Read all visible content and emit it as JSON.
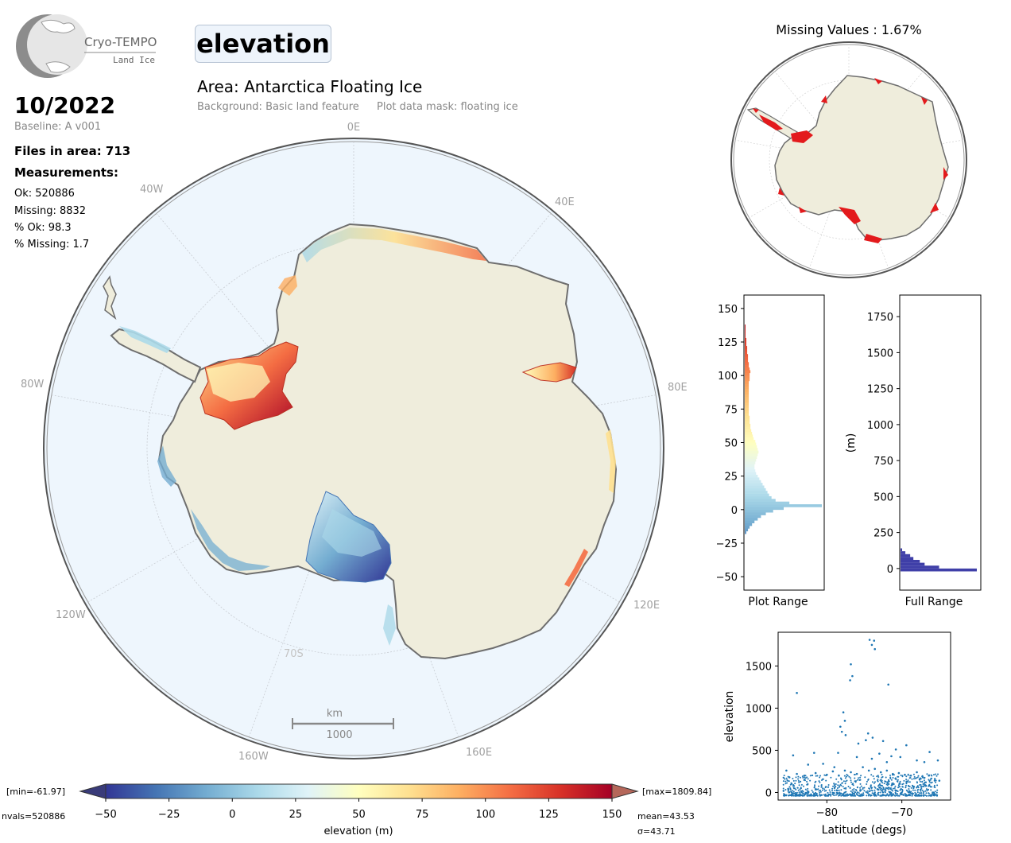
{
  "header": {
    "logo_title": "Cryo-TEMPO",
    "logo_subtitle": "Land Ice",
    "variable": "elevation",
    "area_title": "Area: Antarctica Floating Ice",
    "background_note": "Background: Basic land feature",
    "mask_note": "Plot data mask: floating ice"
  },
  "info": {
    "date": "10/2022",
    "baseline": "Baseline: A v001",
    "files": "Files in area: 713",
    "measurements_heading": "Measurements:",
    "ok": "Ok: 520886",
    "missing": "Missing: 8832",
    "pct_ok": "% Ok: 98.3",
    "pct_missing": "% Missing: 1.7"
  },
  "map": {
    "lon_labels": {
      "l0E": "0E",
      "l40E": "40E",
      "l80E": "80E",
      "l120E": "120E",
      "l160E": "160E",
      "l40W": "40W",
      "l80W": "80W",
      "l120W": "120W",
      "l160W": "160W"
    },
    "lat_label": "70S",
    "scale_unit": "km",
    "scale_value": "1000",
    "colors": {
      "ocean": "#eef6fd",
      "land": "#efeddc",
      "coast": "#6e6e6e",
      "grid": "#bbbbbb"
    }
  },
  "colorbar": {
    "label": "elevation (m)",
    "min_label": "[min=-61.97]",
    "max_label": "[max=1809.84]",
    "nvals": "nvals=520886",
    "mean": "mean=43.53",
    "sigma": "σ=43.71",
    "ticks": [
      "−50",
      "−25",
      "0",
      "25",
      "50",
      "75",
      "100",
      "125",
      "150"
    ],
    "range": [
      -50,
      150
    ],
    "colormap": [
      "#313695",
      "#4575b4",
      "#74add1",
      "#abd9e9",
      "#e0f3f8",
      "#ffffbf",
      "#fee090",
      "#fdae61",
      "#f46d43",
      "#d73027",
      "#a50026"
    ],
    "under_color": "#393b79",
    "over_color": "#b5675a"
  },
  "missing_map": {
    "title": "Missing Values : 1.67%",
    "missing_color": "#e31a1c"
  },
  "chart_data": [
    {
      "type": "bar",
      "name": "plot-range-histogram",
      "xlabel": "Plot Range",
      "ylim": [
        -60,
        160
      ],
      "yticks": [
        "150",
        "125",
        "100",
        "75",
        "50",
        "25",
        "0",
        "−25",
        "−50"
      ],
      "orientation": "horizontal",
      "bin_width": 2,
      "bin_centers": [
        -17,
        -15,
        -13,
        -11,
        -9,
        -7,
        -5,
        -3,
        -1,
        1,
        3,
        5,
        7,
        9,
        11,
        13,
        15,
        17,
        19,
        21,
        23,
        25,
        27,
        29,
        31,
        33,
        35,
        37,
        39,
        41,
        43,
        45,
        47,
        49,
        51,
        53,
        55,
        57,
        59,
        61,
        63,
        65,
        67,
        69,
        71,
        73,
        75,
        77,
        79,
        81,
        83,
        85,
        87,
        89,
        91,
        93,
        95,
        97,
        99,
        101,
        103,
        105,
        107,
        109,
        111,
        113,
        115,
        117,
        119,
        121,
        123,
        125,
        127,
        129,
        131,
        133,
        135,
        137
      ],
      "counts": [
        2,
        4,
        6,
        9,
        12,
        16,
        20,
        26,
        35,
        48,
        95,
        55,
        38,
        33,
        30,
        28,
        26,
        24,
        22,
        20,
        18,
        16,
        14,
        13,
        12,
        12,
        13,
        14,
        15,
        16,
        17,
        16,
        15,
        14,
        13,
        11,
        10,
        9,
        8,
        7,
        7,
        6,
        6,
        6,
        5,
        5,
        5,
        5,
        5,
        5,
        5,
        5,
        5,
        5,
        5,
        5,
        5,
        6,
        6,
        6,
        7,
        6,
        5,
        5,
        4,
        4,
        4,
        3,
        3,
        3,
        2,
        2,
        2,
        1,
        1,
        1,
        1,
        1
      ]
    },
    {
      "type": "bar",
      "name": "full-range-histogram",
      "xlabel": "Full Range",
      "ylabel": "(m)",
      "ylim": [
        -150,
        1900
      ],
      "yticks": [
        "1750",
        "1500",
        "1250",
        "1000",
        "750",
        "500",
        "250",
        "0"
      ],
      "orientation": "horizontal",
      "bar_color": "#3f3fa8",
      "bins": [
        {
          "y": -10,
          "count": 95
        },
        {
          "y": 10,
          "count": 48
        },
        {
          "y": 30,
          "count": 30
        },
        {
          "y": 50,
          "count": 24
        },
        {
          "y": 70,
          "count": 16
        },
        {
          "y": 90,
          "count": 12
        },
        {
          "y": 110,
          "count": 6
        },
        {
          "y": 130,
          "count": 2
        }
      ]
    },
    {
      "type": "scatter",
      "name": "elevation-vs-latitude",
      "xlabel": "Latitude (degs)",
      "ylabel": "elevation",
      "xlim": [
        -86.5,
        -63.5
      ],
      "ylim": [
        -90,
        1900
      ],
      "xticks": [
        "−80",
        "−70"
      ],
      "yticks": [
        "1500",
        "1000",
        "500",
        "0"
      ],
      "color": "#1f77b4",
      "points": [
        [
          -74.3,
          1810
        ],
        [
          -73.7,
          1800
        ],
        [
          -74.0,
          1750
        ],
        [
          -73.6,
          1700
        ],
        [
          -76.8,
          1520
        ],
        [
          -76.6,
          1380
        ],
        [
          -76.9,
          1330
        ],
        [
          -71.8,
          1280
        ],
        [
          -84.0,
          1180
        ],
        [
          -77.8,
          950
        ],
        [
          -77.6,
          850
        ],
        [
          -78.2,
          780
        ],
        [
          -78.0,
          720
        ],
        [
          -77.5,
          680
        ],
        [
          -74.5,
          700
        ],
        [
          -73.9,
          650
        ],
        [
          -74.8,
          620
        ],
        [
          -72.5,
          610
        ],
        [
          -75.8,
          580
        ],
        [
          -69.4,
          560
        ],
        [
          -70.8,
          510
        ],
        [
          -66.3,
          480
        ],
        [
          -78.5,
          470
        ],
        [
          -81.7,
          470
        ],
        [
          -84.5,
          440
        ],
        [
          -73.0,
          460
        ],
        [
          -71.4,
          430
        ],
        [
          -70.2,
          420
        ],
        [
          -68.0,
          380
        ],
        [
          -67.0,
          360
        ],
        [
          -65.2,
          380
        ],
        [
          -80.5,
          340
        ],
        [
          -82.5,
          330
        ],
        [
          -76.0,
          420
        ],
        [
          -74.0,
          400
        ],
        [
          -72.0,
          360
        ],
        [
          -79.0,
          300
        ],
        [
          -85.4,
          260
        ],
        [
          -85.0,
          180
        ],
        [
          -84.0,
          220
        ],
        [
          -83.0,
          200
        ],
        [
          -81.5,
          230
        ],
        [
          -80.0,
          210
        ],
        [
          -79.2,
          250
        ],
        [
          -78.4,
          200
        ],
        [
          -77.6,
          260
        ],
        [
          -76.8,
          240
        ],
        [
          -76.0,
          220
        ],
        [
          -75.2,
          300
        ],
        [
          -74.4,
          260
        ],
        [
          -73.6,
          280
        ],
        [
          -72.8,
          240
        ],
        [
          -72.0,
          260
        ],
        [
          -71.2,
          220
        ],
        [
          -70.4,
          230
        ],
        [
          -69.6,
          210
        ],
        [
          -68.8,
          200
        ],
        [
          -68.0,
          240
        ],
        [
          -67.2,
          180
        ],
        [
          -66.4,
          200
        ],
        [
          -65.6,
          160
        ],
        [
          -65.0,
          140
        ]
      ]
    }
  ]
}
